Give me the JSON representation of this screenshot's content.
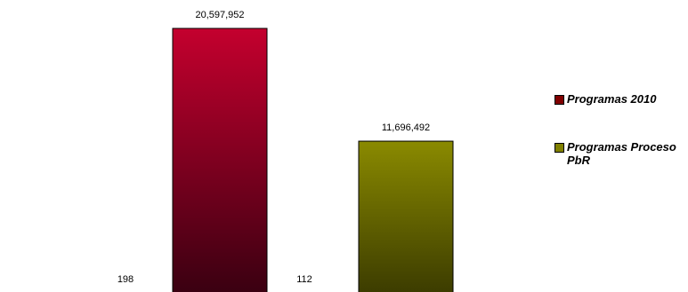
{
  "chart_data": {
    "type": "bar",
    "categories": [
      "",
      ""
    ],
    "series": [
      {
        "name": "Programas 2010",
        "count_label": "198",
        "value": 20597952,
        "value_label": "20,597,952",
        "color_top": "#c4002e",
        "color_bottom": "#3a0011",
        "legend_color": "#800000"
      },
      {
        "name": "Programas Proceso PbR",
        "count_label": "112",
        "value": 11696492,
        "value_label": "11,696,492",
        "color_top": "#8a8a00",
        "color_bottom": "#3c3c00",
        "legend_color": "#808000"
      }
    ],
    "ylim": [
      0,
      20597952
    ],
    "grid": false,
    "legend_position": "right"
  }
}
